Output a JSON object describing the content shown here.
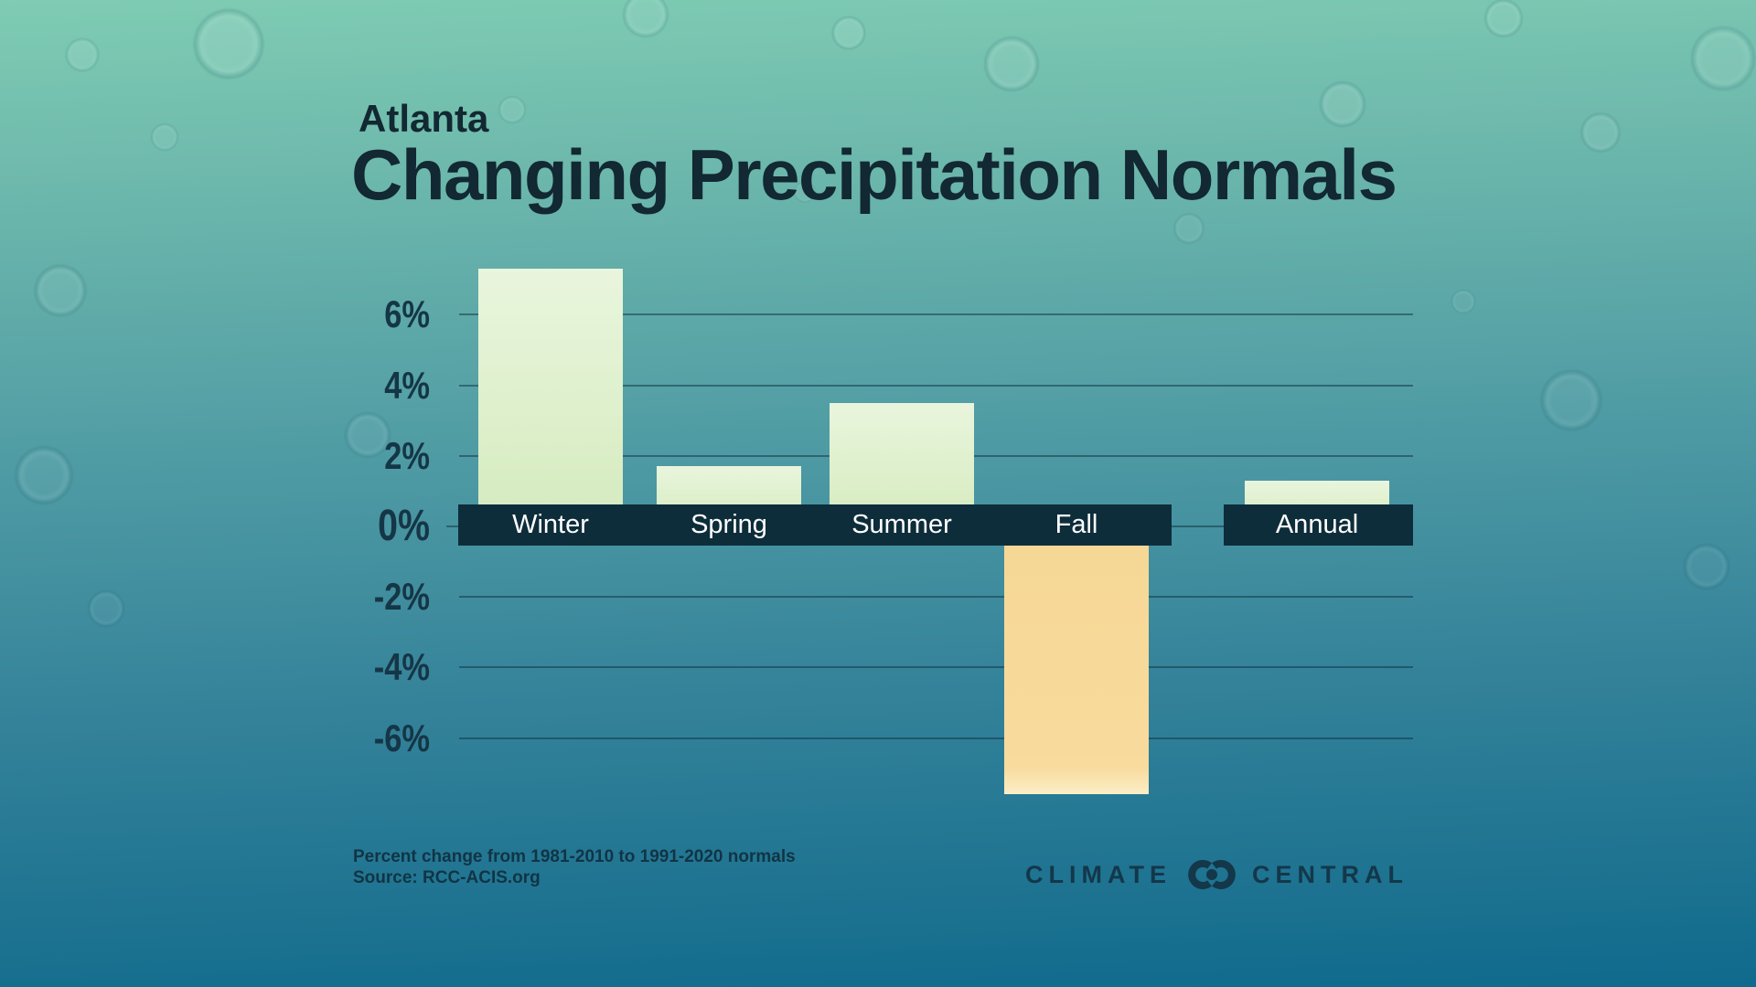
{
  "header": {
    "city": "Atlanta",
    "title": "Changing Precipitation Normals"
  },
  "chart_data": {
    "type": "bar",
    "title": "Changing Precipitation Normals",
    "subtitle": "Atlanta",
    "categories": [
      "Winter",
      "Spring",
      "Summer",
      "Fall",
      "Annual"
    ],
    "values": [
      7.3,
      1.7,
      3.5,
      -7.6,
      1.3
    ],
    "unit": "percent",
    "ytick_labels": [
      "6%",
      "4%",
      "2%",
      "0%",
      "-2%",
      "-4%",
      "-6%"
    ],
    "ytick_values": [
      6,
      4,
      2,
      0,
      -2,
      -4,
      -6
    ],
    "ylim": [
      -8.2,
      7.5
    ],
    "grid": true,
    "legend": false,
    "xlabel": "",
    "ylabel": "",
    "bar_color_positive": "#dcefc9",
    "bar_color_negative": "#f8db9d",
    "axis_band_color": "#0e2d3b",
    "annotation": "Annual bar is separated from the four seasonal bars"
  },
  "footer": {
    "note": "Percent change from 1981-2010 to 1991-2020 normals",
    "source": "Source: RCC-ACIS.org"
  },
  "logo": {
    "climate": "CLIMATE",
    "central": "CENTRAL",
    "mark": "interlocking-cc-icon"
  },
  "colors": {
    "background_top": "#7fccb3",
    "background_bottom": "#0f6a8d",
    "title_text": "#122832",
    "tick_text": "#153646",
    "band_label_text": "#ffffff",
    "gridline": "rgba(14,48,62,0.5)"
  }
}
